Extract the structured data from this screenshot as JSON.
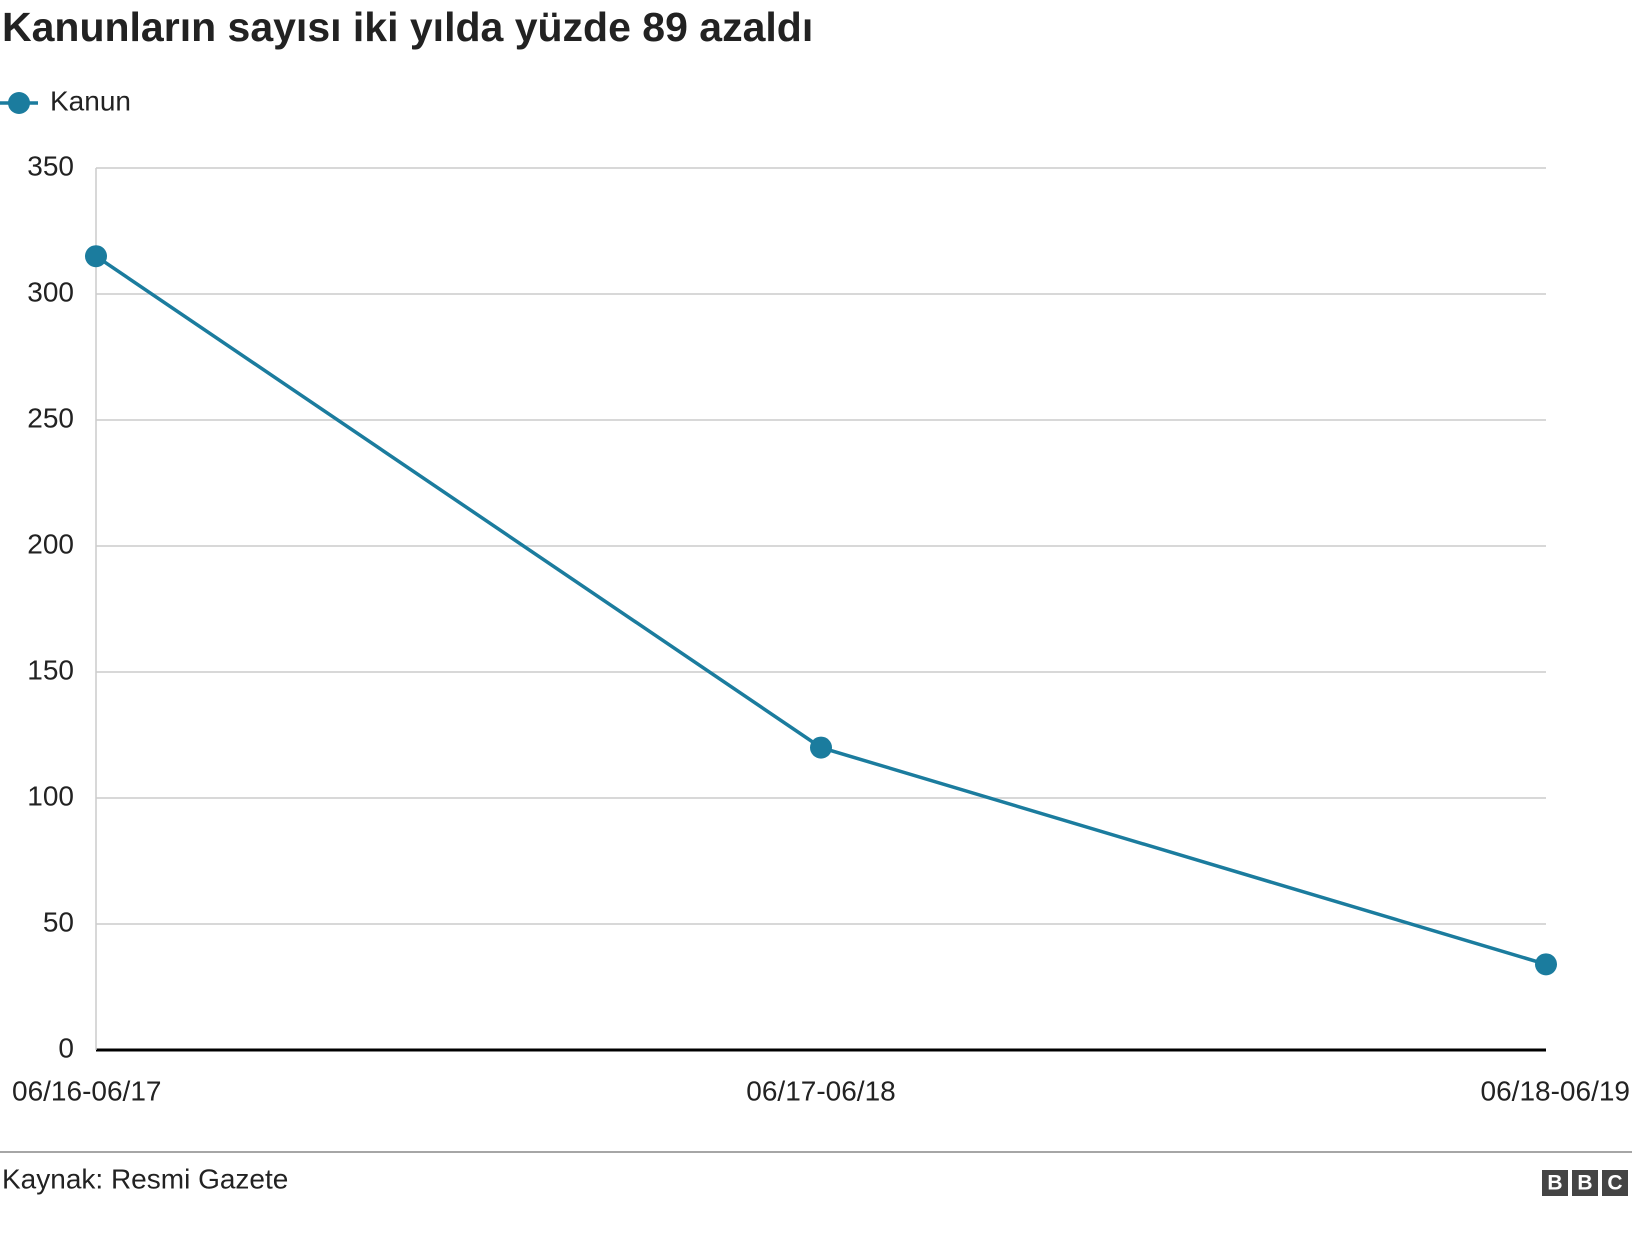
{
  "chart_data": {
    "type": "line",
    "title": "Kanunların sayısı iki yılda yüzde 89 azaldı",
    "categories": [
      "06/16-06/17",
      "06/17-06/18",
      "06/18-06/19"
    ],
    "series": [
      {
        "name": "Kanun",
        "color": "#1b7c9e",
        "values": [
          315,
          120,
          34
        ]
      }
    ],
    "ylim": [
      0,
      350
    ],
    "yticks": [
      0,
      50,
      100,
      150,
      200,
      250,
      300,
      350
    ],
    "grid": true,
    "legend": "top-left",
    "source": "Kaynak: Resmi Gazete",
    "logo": "BBC"
  }
}
